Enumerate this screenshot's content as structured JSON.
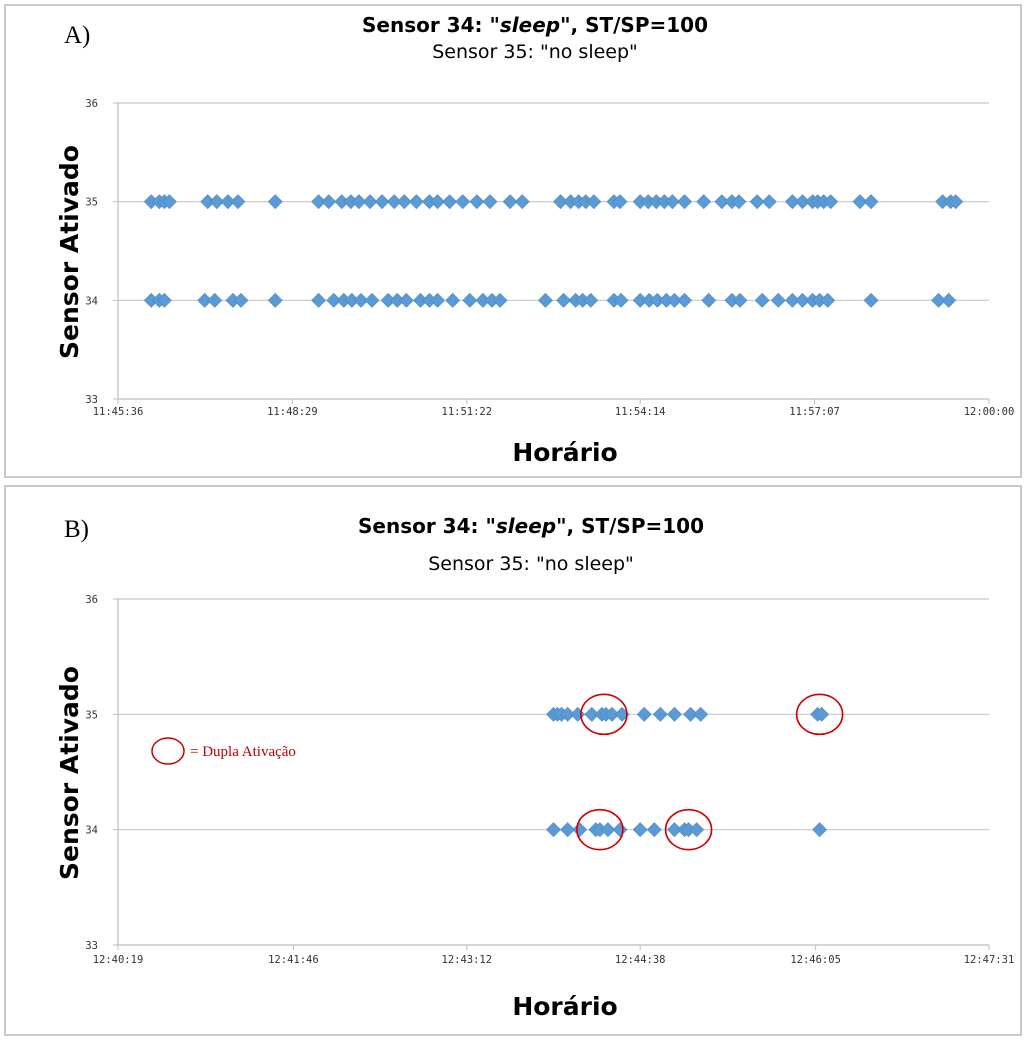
{
  "chart_data": [
    {
      "type": "scatter",
      "panel_label": "A)",
      "title_prefix": "Sensor 34: \"",
      "title_italic": "sleep",
      "title_suffix": "\", ST/SP=100",
      "subtitle": "Sensor 35: \"no sleep\"",
      "xlabel": "Horário",
      "ylabel": "Sensor Ativado",
      "x_ticks": [
        "11:45:36",
        "11:48:29",
        "11:51:22",
        "11:54:14",
        "11:57:07",
        "12:00:00"
      ],
      "y_ticks": [
        "33",
        "34",
        "35",
        "36"
      ],
      "ylim": [
        33,
        36
      ],
      "grid": "horizontal",
      "marker_color": "#5b9bd5",
      "series": [
        {
          "name": "35",
          "y": 35,
          "x": [
            "11:46:09",
            "11:46:17",
            "11:46:22",
            "11:46:27",
            "11:47:05",
            "11:47:14",
            "11:47:25",
            "11:47:35",
            "11:48:12",
            "11:48:55",
            "11:49:05",
            "11:49:18",
            "11:49:27",
            "11:49:35",
            "11:49:46",
            "11:49:58",
            "11:50:10",
            "11:50:20",
            "11:50:32",
            "11:50:45",
            "11:50:53",
            "11:51:05",
            "11:51:18",
            "11:51:32",
            "11:51:45",
            "11:52:05",
            "11:52:17",
            "11:52:55",
            "11:53:05",
            "11:53:13",
            "11:53:20",
            "11:53:28",
            "11:53:48",
            "11:53:54",
            "11:54:14",
            "11:54:22",
            "11:54:30",
            "11:54:38",
            "11:54:46",
            "11:54:58",
            "11:55:17",
            "11:55:35",
            "11:55:45",
            "11:55:52",
            "11:56:10",
            "11:56:22",
            "11:56:45",
            "11:56:55",
            "11:57:05",
            "11:57:10",
            "11:57:16",
            "11:57:23",
            "11:57:52",
            "11:58:03",
            "11:59:14",
            "11:59:22",
            "11:59:27"
          ]
        },
        {
          "name": "34",
          "y": 34,
          "x": [
            "11:46:09",
            "11:46:17",
            "11:46:22",
            "11:47:02",
            "11:47:12",
            "11:47:30",
            "11:47:38",
            "11:48:12",
            "11:48:55",
            "11:49:10",
            "11:49:20",
            "11:49:28",
            "11:49:37",
            "11:49:48",
            "11:50:04",
            "11:50:13",
            "11:50:22",
            "11:50:36",
            "11:50:45",
            "11:50:53",
            "11:51:08",
            "11:51:25",
            "11:51:38",
            "11:51:47",
            "11:51:55",
            "11:52:40",
            "11:52:58",
            "11:53:10",
            "11:53:17",
            "11:53:25",
            "11:53:48",
            "11:53:55",
            "11:54:14",
            "11:54:23",
            "11:54:31",
            "11:54:40",
            "11:54:48",
            "11:54:58",
            "11:55:22",
            "11:55:45",
            "11:55:53",
            "11:56:15",
            "11:56:31",
            "11:56:45",
            "11:56:55",
            "11:57:05",
            "11:57:12",
            "11:57:20",
            "11:58:03",
            "11:59:10",
            "11:59:20"
          ]
        }
      ]
    },
    {
      "type": "scatter",
      "panel_label": "B)",
      "title_prefix": "Sensor 34: \"",
      "title_italic": "sleep",
      "title_suffix": "\", ST/SP=100",
      "subtitle": "Sensor 35: \"no sleep\"",
      "xlabel": "Horário",
      "ylabel": "Sensor Ativado",
      "x_ticks": [
        "12:40:19",
        "12:41:46",
        "12:43:12",
        "12:44:38",
        "12:46:05",
        "12:47:31"
      ],
      "y_ticks": [
        "33",
        "34",
        "35",
        "36"
      ],
      "ylim": [
        33,
        36
      ],
      "grid": "horizontal",
      "marker_color": "#5b9bd5",
      "series": [
        {
          "name": "35",
          "y": 35,
          "x": [
            "12:43:55",
            "12:43:57",
            "12:43:59",
            "12:44:02",
            "12:44:07",
            "12:44:14",
            "12:44:19",
            "12:44:21",
            "12:44:24",
            "12:44:29",
            "12:44:40",
            "12:44:48",
            "12:44:55",
            "12:45:03",
            "12:45:08",
            "12:46:06",
            "12:46:08"
          ]
        },
        {
          "name": "34",
          "y": 34,
          "x": [
            "12:43:55",
            "12:44:02",
            "12:44:08",
            "12:44:16",
            "12:44:18",
            "12:44:22",
            "12:44:28",
            "12:44:38",
            "12:44:45",
            "12:44:55",
            "12:45:00",
            "12:45:02",
            "12:45:06",
            "12:46:07"
          ]
        }
      ],
      "annotations": {
        "circled_points": [
          {
            "series": "35",
            "x": "12:44:20"
          },
          {
            "series": "35",
            "x": "12:46:07"
          },
          {
            "series": "34",
            "x": "12:44:18"
          },
          {
            "series": "34",
            "x": "12:45:02"
          }
        ],
        "circle_color": "#d00000",
        "legend_text": "= Dupla Ativação"
      }
    }
  ]
}
